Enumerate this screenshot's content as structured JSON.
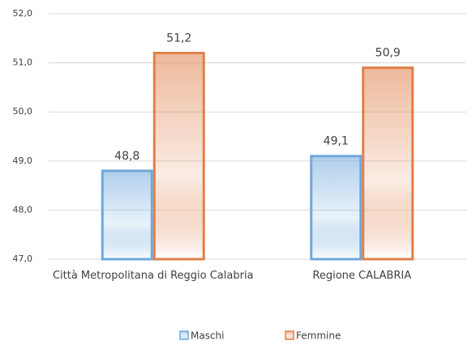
{
  "chart_data": {
    "type": "bar",
    "categories": [
      "Città Metropolitana di Reggio Calabria",
      "Regione CALABRIA"
    ],
    "series": [
      {
        "name": "Maschi",
        "color": "#6fa8dc",
        "values": [
          48.8,
          49.1
        ],
        "value_labels": [
          "48,8",
          "49,1"
        ]
      },
      {
        "name": "Femmine",
        "color": "#e0804a",
        "values": [
          51.2,
          50.9
        ],
        "value_labels": [
          "51,2",
          "50,9"
        ]
      }
    ],
    "ylim": [
      47,
      52
    ],
    "yticks": [
      {
        "value": 47,
        "label": "47,0"
      },
      {
        "value": 48,
        "label": "48,0"
      },
      {
        "value": 49,
        "label": "49,0"
      },
      {
        "value": 50,
        "label": "50,0"
      },
      {
        "value": 51,
        "label": "51,0"
      },
      {
        "value": 52,
        "label": "52,0"
      }
    ],
    "grid": true,
    "legend": "bottom"
  }
}
